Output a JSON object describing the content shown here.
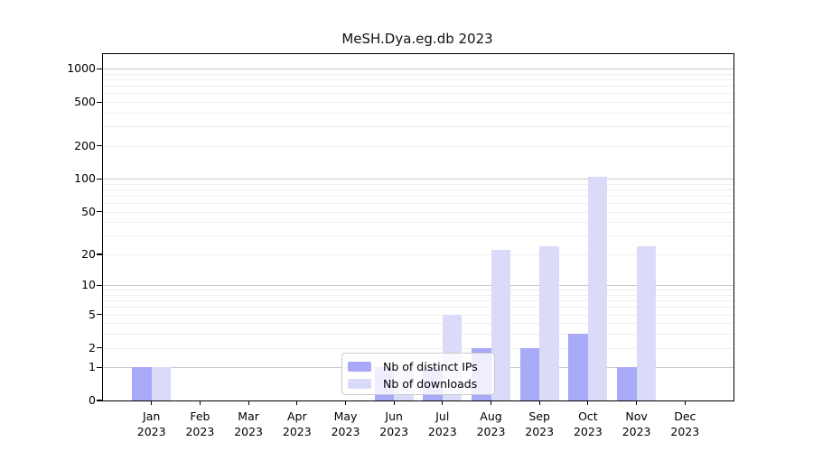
{
  "title": "MeSH.Dya.eg.db 2023",
  "colors": {
    "distinct_ips_bar": "#a8a9f7",
    "downloads_bar": "#d9dbf8",
    "major_gridline": "#c8c8c8",
    "minor_gridline": "#eeeeee",
    "axis": "#000000",
    "legend_border": "#cccccc"
  },
  "legend": {
    "items": [
      {
        "label": "Nb of distinct IPs"
      },
      {
        "label": "Nb of downloads"
      }
    ]
  },
  "chart_data": {
    "type": "bar",
    "title": "MeSH.Dya.eg.db 2023",
    "xlabel": "",
    "ylabel": "",
    "scale": "log1p",
    "year": "2023",
    "categories": [
      "Jan",
      "Feb",
      "Mar",
      "Apr",
      "May",
      "Jun",
      "Jul",
      "Aug",
      "Sep",
      "Oct",
      "Nov",
      "Dec"
    ],
    "series": [
      {
        "name": "Nb of distinct IPs",
        "color": "#a8a9f7",
        "values": [
          1,
          0,
          0,
          0,
          0,
          1,
          1,
          2,
          2,
          3,
          1,
          0
        ]
      },
      {
        "name": "Nb of downloads",
        "color": "#d9dbf8",
        "values": [
          1,
          0,
          0,
          0,
          0,
          1,
          5,
          22,
          24,
          105,
          24,
          0
        ]
      }
    ],
    "y_ticks": [
      0,
      1,
      2,
      5,
      10,
      20,
      50,
      100,
      200,
      500,
      1000
    ],
    "major_gridlines": [
      1,
      10,
      100,
      1000
    ],
    "minor_gridlines": [
      2,
      3,
      4,
      5,
      6,
      7,
      8,
      9,
      20,
      30,
      40,
      50,
      60,
      70,
      80,
      90,
      200,
      300,
      400,
      500,
      600,
      700,
      800,
      900
    ],
    "ylim": [
      0,
      1100
    ],
    "grid": true,
    "legend_position": "lower-center-inside"
  }
}
